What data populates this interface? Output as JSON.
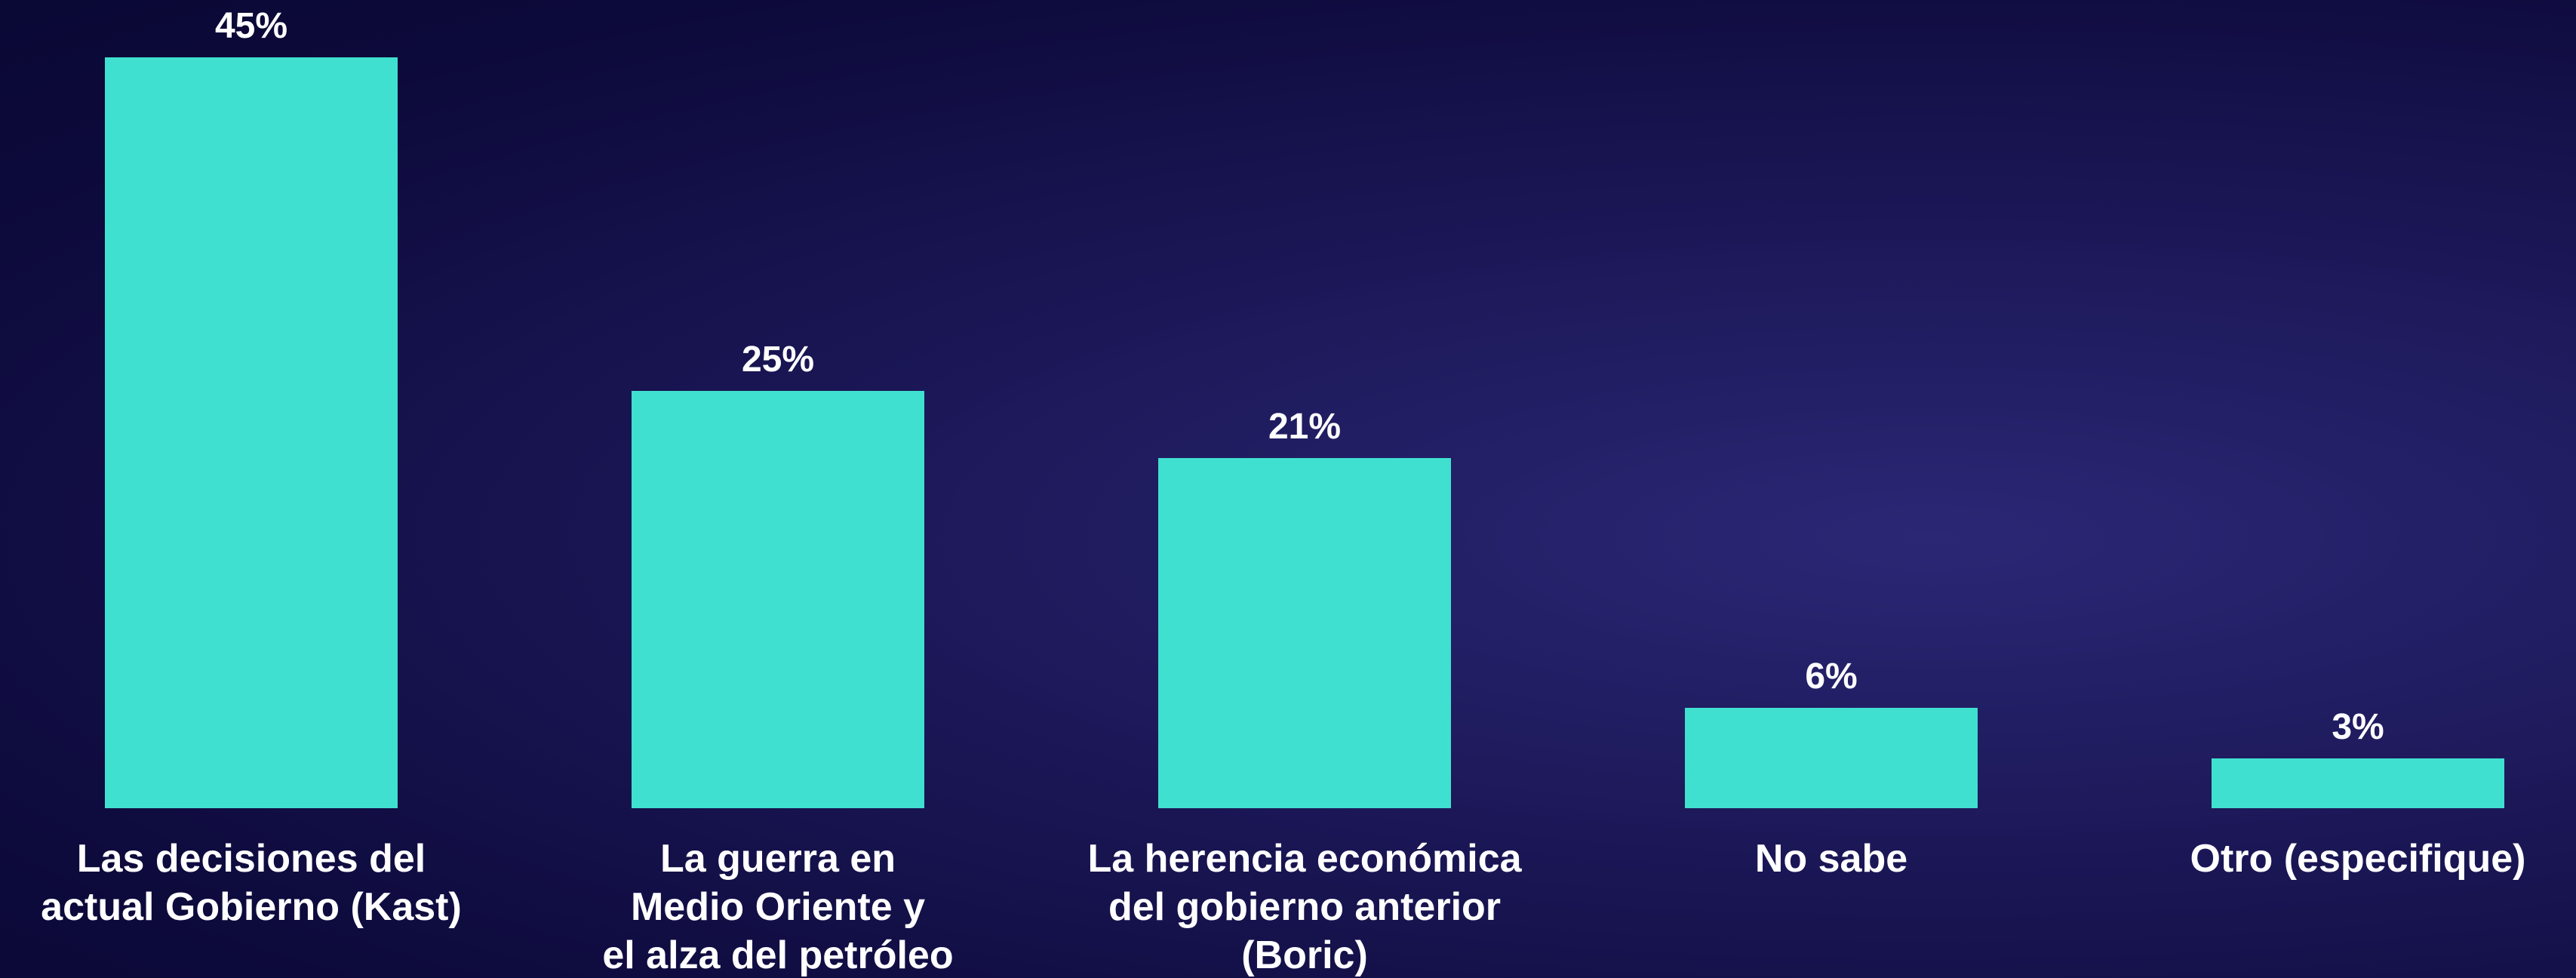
{
  "chart_data": {
    "type": "bar",
    "categories": [
      "Las decisiones del\nactual Gobierno (Kast)",
      "La guerra en\nMedio Oriente y\nel alza del petróleo",
      "La herencia económica\ndel gobierno anterior\n(Boric)",
      "No sabe",
      "Otro (especifique)"
    ],
    "values": [
      45,
      25,
      21,
      6,
      3
    ],
    "value_labels": [
      "45%",
      "25%",
      "21%",
      "6%",
      "3%"
    ],
    "color": "#40e0d0",
    "ylim": [
      0,
      45
    ]
  }
}
